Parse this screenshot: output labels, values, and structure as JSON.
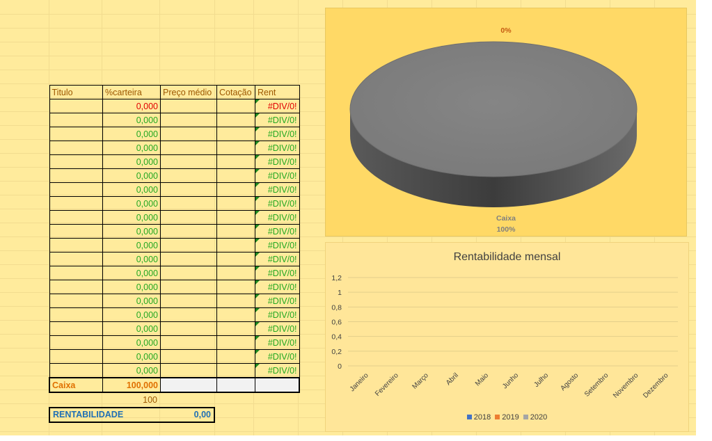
{
  "table": {
    "headers": [
      "Titulo",
      "%carteira",
      "Preço médio",
      "Cotação",
      "Rent"
    ],
    "rows": [
      {
        "pct": "0,000",
        "rent": "#DIV/0!",
        "highlight": true
      },
      {
        "pct": "0,000",
        "rent": "#DIV/0!"
      },
      {
        "pct": "0,000",
        "rent": "#DIV/0!"
      },
      {
        "pct": "0,000",
        "rent": "#DIV/0!"
      },
      {
        "pct": "0,000",
        "rent": "#DIV/0!"
      },
      {
        "pct": "0,000",
        "rent": "#DIV/0!"
      },
      {
        "pct": "0,000",
        "rent": "#DIV/0!"
      },
      {
        "pct": "0,000",
        "rent": "#DIV/0!"
      },
      {
        "pct": "0,000",
        "rent": "#DIV/0!"
      },
      {
        "pct": "0,000",
        "rent": "#DIV/0!"
      },
      {
        "pct": "0,000",
        "rent": "#DIV/0!"
      },
      {
        "pct": "0,000",
        "rent": "#DIV/0!"
      },
      {
        "pct": "0,000",
        "rent": "#DIV/0!"
      },
      {
        "pct": "0,000",
        "rent": "#DIV/0!"
      },
      {
        "pct": "0,000",
        "rent": "#DIV/0!"
      },
      {
        "pct": "0,000",
        "rent": "#DIV/0!"
      },
      {
        "pct": "0,000",
        "rent": "#DIV/0!"
      },
      {
        "pct": "0,000",
        "rent": "#DIV/0!"
      },
      {
        "pct": "0,000",
        "rent": "#DIV/0!"
      },
      {
        "pct": "0,000",
        "rent": "#DIV/0!"
      }
    ],
    "caixa": {
      "label": "Caixa",
      "pct": "100,000"
    },
    "total": "100"
  },
  "rentabilidade": {
    "label": "RENTABILIDADE",
    "value": "0,00"
  },
  "chart_data": [
    {
      "type": "pie",
      "labels": [
        "Caixa"
      ],
      "values": [
        100
      ],
      "data_labels": [
        "0%",
        "Caixa",
        "100%"
      ],
      "colors": [
        "#7f7f7f"
      ]
    },
    {
      "type": "bar",
      "title": "Rentabilidade mensal",
      "categories": [
        "Janeiro",
        "Fevereiro",
        "Março",
        "Abril",
        "Maio",
        "Junho",
        "Julho",
        "Agosto",
        "Setembro",
        "Novembro",
        "Dezembro"
      ],
      "series": [
        {
          "name": "2018",
          "values": [
            0,
            0,
            0,
            0,
            0,
            0,
            0,
            0,
            0,
            0,
            0
          ],
          "color": "#4472c4"
        },
        {
          "name": "2019",
          "values": [
            0,
            0,
            0,
            0,
            0,
            0,
            0,
            0,
            0,
            0,
            0
          ],
          "color": "#ed7d31"
        },
        {
          "name": "2020",
          "values": [
            0,
            0,
            0,
            0,
            0,
            0,
            0,
            0,
            0,
            0,
            0
          ],
          "color": "#a5a5a5"
        }
      ],
      "ylim": [
        0,
        1.2
      ],
      "yticks": [
        "0",
        "0,2",
        "0,4",
        "0,6",
        "0,8",
        "1",
        "1,2"
      ],
      "grid": true,
      "legend": "bottom"
    }
  ]
}
